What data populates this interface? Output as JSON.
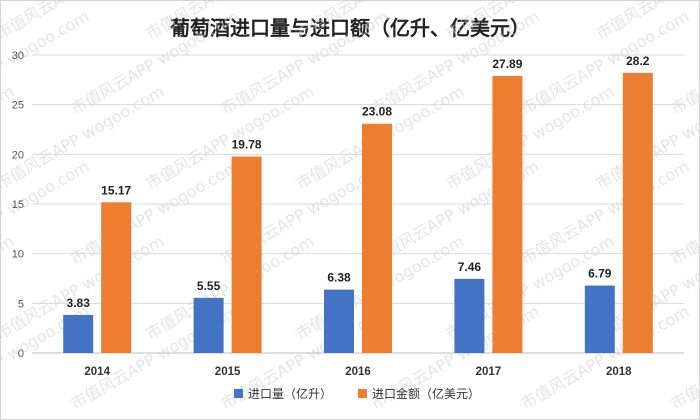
{
  "chart_data": {
    "type": "bar",
    "title": "葡萄酒进口量与进口额（亿升、亿美元）",
    "categories": [
      "2014",
      "2015",
      "2016",
      "2017",
      "2018"
    ],
    "series": [
      {
        "name": "进口量（亿升）",
        "values": [
          3.83,
          5.55,
          6.38,
          7.46,
          6.79
        ],
        "color": "#4472c4"
      },
      {
        "name": "进口金额（亿美元）",
        "values": [
          15.17,
          19.78,
          23.08,
          27.89,
          28.2
        ],
        "color": "#ed7d31"
      }
    ],
    "data_labels": [
      [
        "3.83",
        "5.55",
        "6.38",
        "7.46",
        "6.79"
      ],
      [
        "15.17",
        "19.78",
        "23.08",
        "27.89",
        "28.2"
      ]
    ],
    "ylim": [
      0,
      30
    ],
    "yticks": [
      "0",
      "5",
      "10",
      "15",
      "20",
      "25",
      "30"
    ],
    "xlabel": "",
    "ylabel": "",
    "grid": true,
    "legend_position": "bottom"
  },
  "watermark": [
    "市值风云APP",
    "wogoo.com"
  ]
}
